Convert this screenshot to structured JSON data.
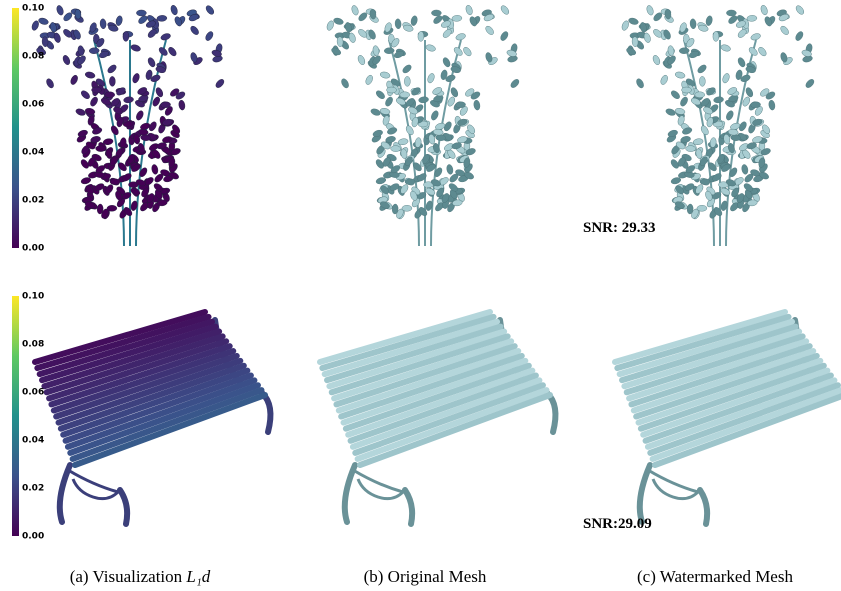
{
  "rows": [
    {
      "colorbar": {
        "ticks": [
          "0.10",
          "0.08",
          "0.06",
          "0.04",
          "0.02",
          "0.00"
        ]
      },
      "snr": "SNR: 29.33"
    },
    {
      "colorbar": {
        "ticks": [
          "0.10",
          "0.08",
          "0.06",
          "0.04",
          "0.02",
          "0.00"
        ]
      },
      "snr": "SNR:29.09"
    }
  ],
  "captions": [
    {
      "label": "(a) Visualization",
      "math": "L₁d"
    },
    {
      "label": "(b) Original Mesh"
    },
    {
      "label": "(c) Watermarked Mesh"
    }
  ]
}
